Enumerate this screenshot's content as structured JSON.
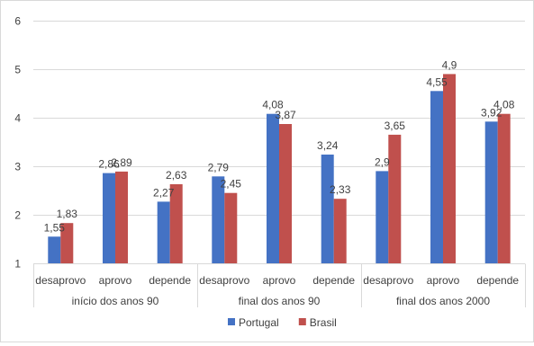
{
  "chart_data": {
    "type": "bar",
    "title": "",
    "xlabel": "",
    "ylabel": "",
    "ylim": [
      1,
      6
    ],
    "y_ticks": [
      1,
      2,
      3,
      4,
      5,
      6
    ],
    "y_tick_labels": [
      "1",
      "2",
      "3",
      "4",
      "5",
      "6"
    ],
    "grid": true,
    "legend_position": "bottom",
    "groups": [
      {
        "label": "início dos anos 90",
        "categories": [
          "desaprovo",
          "aprovo",
          "depende"
        ]
      },
      {
        "label": "final dos anos 90",
        "categories": [
          "desaprovo",
          "aprovo",
          "depende"
        ]
      },
      {
        "label": "final dos anos 2000",
        "categories": [
          "desaprovo",
          "aprovo",
          "depende"
        ]
      }
    ],
    "series": [
      {
        "name": "Portugal",
        "color": "#4472c4",
        "values": [
          1.55,
          2.86,
          2.27,
          2.79,
          4.08,
          3.24,
          2.9,
          4.55,
          3.92
        ],
        "labels": [
          "1,55",
          "2,86",
          "2,27",
          "2,79",
          "4,08",
          "3,24",
          "2,9",
          "4,55",
          "3,92"
        ]
      },
      {
        "name": "Brasil",
        "color": "#c0504d",
        "values": [
          1.83,
          2.89,
          2.63,
          2.45,
          3.87,
          2.33,
          3.65,
          4.9,
          4.08
        ],
        "labels": [
          "1,83",
          "2,89",
          "2,63",
          "2,45",
          "3,87",
          "2,33",
          "3,65",
          "4,9",
          "4,08"
        ]
      }
    ]
  }
}
